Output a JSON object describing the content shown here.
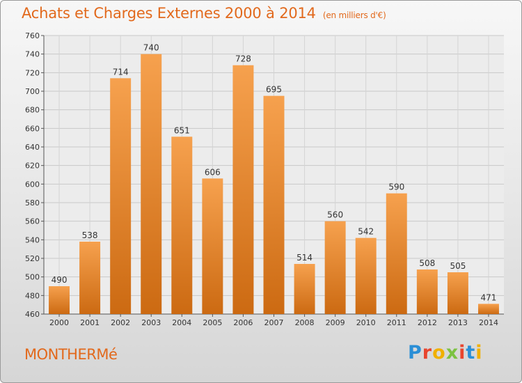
{
  "header": {
    "title": "Achats et Charges Externes 2000 à 2014",
    "subtitle": "(en milliers d'€)"
  },
  "footer": {
    "commune": "MONTHERMé",
    "brand": "Proxiti"
  },
  "colors": {
    "bar_light": "#f6a14e",
    "bar_dark": "#cc6a12",
    "title": "#e2691c",
    "brand_letters": [
      "#2b8fd6",
      "#e8452e",
      "#f0b000",
      "#7cc242",
      "#e8452e",
      "#2b8fd6",
      "#f0b000"
    ]
  },
  "chart_data": {
    "type": "bar",
    "categories": [
      "2000",
      "2001",
      "2002",
      "2003",
      "2004",
      "2005",
      "2006",
      "2007",
      "2008",
      "2009",
      "2010",
      "2011",
      "2012",
      "2013",
      "2014"
    ],
    "values": [
      490,
      538,
      714,
      740,
      651,
      606,
      728,
      695,
      514,
      560,
      542,
      590,
      508,
      505,
      471
    ],
    "title": "Achats et Charges Externes 2000 à 2014",
    "ylim": [
      460,
      760
    ],
    "yticks": [
      460,
      480,
      500,
      520,
      540,
      560,
      580,
      600,
      620,
      640,
      660,
      680,
      700,
      720,
      740,
      760
    ],
    "grid": true,
    "legend": "none"
  }
}
